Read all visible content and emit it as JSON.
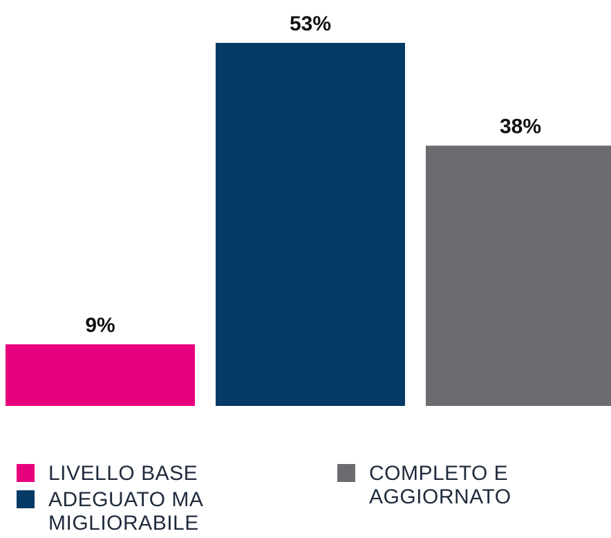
{
  "chart_data": {
    "type": "bar",
    "categories": [
      "LIVELLO BASE",
      "ADEGUATO MA MIGLIORABILE",
      "COMPLETO E AGGIORNATO"
    ],
    "values": [
      9,
      53,
      38
    ],
    "value_labels": [
      "9%",
      "53%",
      "38%"
    ],
    "unit": "%",
    "colors": [
      "#e6007e",
      "#063a66",
      "#6c6c70"
    ],
    "ylim": [
      0,
      53
    ],
    "grid": false,
    "legend_position": "bottom",
    "legend": [
      {
        "label": "LIVELLO BASE",
        "color": "#e6007e"
      },
      {
        "label": "ADEGUATO MA\nMIGLIORABILE",
        "color": "#063a66"
      },
      {
        "label": "COMPLETO E\nAGGIORNATO",
        "color": "#6c6c70"
      }
    ]
  }
}
